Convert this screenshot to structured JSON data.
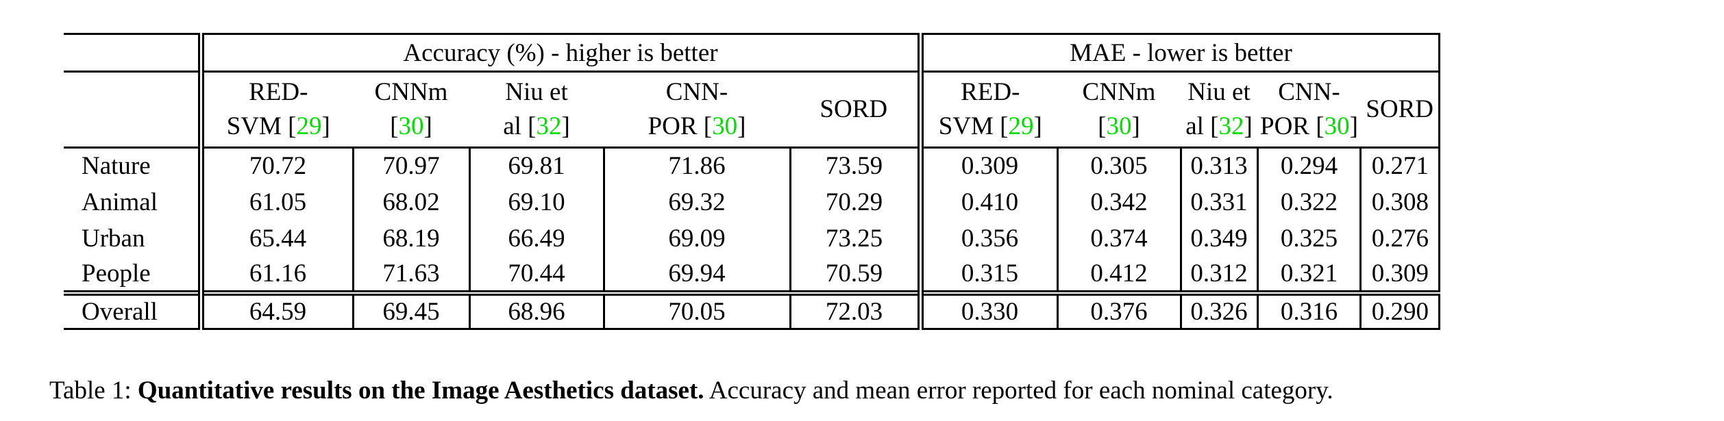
{
  "colors": {
    "citation_green": "#00df00"
  },
  "table": {
    "sections": [
      {
        "title": "Accuracy (%) - higher is better",
        "columns": [
          {
            "top": "RED-",
            "bottom_pre": "SVM [",
            "cite": "29",
            "bottom_post": "]"
          },
          {
            "top": "CNNm",
            "bottom_pre": "[",
            "cite": "30",
            "bottom_post": "]"
          },
          {
            "top": "Niu et",
            "bottom_pre": "al [",
            "cite": "32",
            "bottom_post": "]"
          },
          {
            "top": "CNN-",
            "bottom_pre": "POR [",
            "cite": "30",
            "bottom_post": "]"
          },
          {
            "top": "SORD"
          }
        ]
      },
      {
        "title": "MAE - lower is better",
        "columns": [
          {
            "top": "RED-",
            "bottom_pre": "SVM [",
            "cite": "29",
            "bottom_post": "]"
          },
          {
            "top": "CNNm",
            "bottom_pre": "[",
            "cite": "30",
            "bottom_post": "]"
          },
          {
            "top": "Niu et",
            "bottom_pre": "al [",
            "cite": "32",
            "bottom_post": "]"
          },
          {
            "top": "CNN-",
            "bottom_pre": "POR [",
            "cite": "30",
            "bottom_post": "]"
          },
          {
            "top": "SORD"
          }
        ]
      }
    ],
    "rows": [
      {
        "label": "Nature",
        "overall": false,
        "values": [
          "70.72",
          "70.97",
          "69.81",
          "71.86",
          "73.59",
          "0.309",
          "0.305",
          "0.313",
          "0.294",
          "0.271"
        ],
        "bold": [
          0,
          0,
          0,
          0,
          1,
          0,
          0,
          0,
          0,
          1
        ]
      },
      {
        "label": "Animal",
        "overall": false,
        "values": [
          "61.05",
          "68.02",
          "69.10",
          "69.32",
          "70.29",
          "0.410",
          "0.342",
          "0.331",
          "0.322",
          "0.308"
        ],
        "bold": [
          0,
          0,
          0,
          0,
          1,
          0,
          0,
          0,
          0,
          1
        ]
      },
      {
        "label": "Urban",
        "overall": false,
        "values": [
          "65.44",
          "68.19",
          "66.49",
          "69.09",
          "73.25",
          "0.356",
          "0.374",
          "0.349",
          "0.325",
          "0.276"
        ],
        "bold": [
          0,
          0,
          0,
          0,
          1,
          0,
          0,
          0,
          0,
          1
        ]
      },
      {
        "label": "People",
        "overall": false,
        "values": [
          "61.16",
          "71.63",
          "70.44",
          "69.94",
          "70.59",
          "0.315",
          "0.412",
          "0.312",
          "0.321",
          "0.309"
        ],
        "bold": [
          0,
          1,
          0,
          0,
          0,
          0,
          0,
          0,
          0,
          1
        ]
      },
      {
        "label": "Overall",
        "overall": true,
        "values": [
          "64.59",
          "69.45",
          "68.96",
          "70.05",
          "72.03",
          "0.330",
          "0.376",
          "0.326",
          "0.316",
          "0.290"
        ],
        "bold": [
          0,
          0,
          0,
          0,
          1,
          0,
          0,
          0,
          0,
          1
        ]
      }
    ]
  },
  "caption": {
    "prefix": "Table 1: ",
    "bold_text": "Quantitative results on the Image Aesthetics dataset.",
    "rest": " Accuracy and mean error reported for each nominal category."
  }
}
